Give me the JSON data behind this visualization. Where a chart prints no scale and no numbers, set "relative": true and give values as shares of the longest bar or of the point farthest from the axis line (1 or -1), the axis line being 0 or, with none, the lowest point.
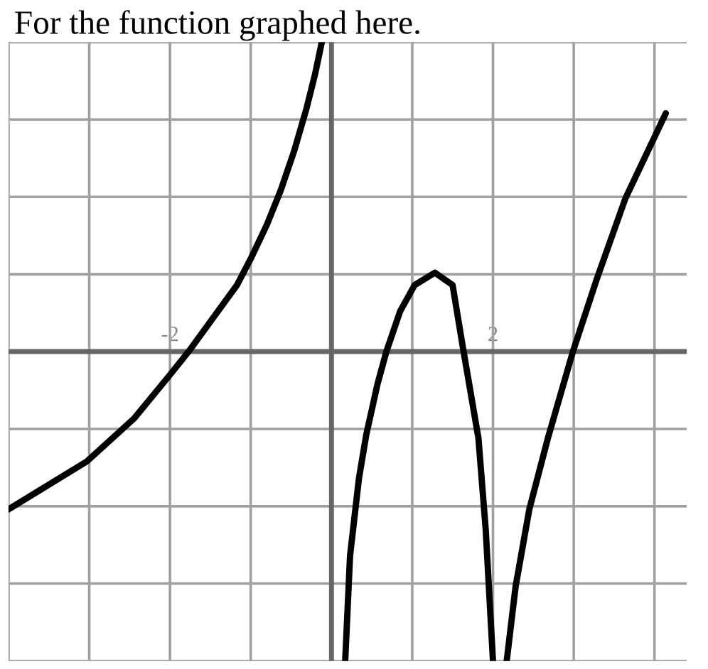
{
  "chart_data": {
    "type": "line",
    "title": "For the function graphed here.",
    "relative": true,
    "xlim": [
      -4,
      4.4
    ],
    "xticks": [
      {
        "value": -4,
        "label": null
      },
      {
        "value": -3,
        "label": null
      },
      {
        "value": -2,
        "label": "-2"
      },
      {
        "value": -1,
        "label": null
      },
      {
        "value": 0,
        "label": null
      },
      {
        "value": 1,
        "label": null
      },
      {
        "value": 2,
        "label": "2"
      },
      {
        "value": 3,
        "label": null
      },
      {
        "value": 4,
        "label": null
      }
    ],
    "tick_labels": "x",
    "grid": true,
    "marker": "none",
    "line_style": "solid",
    "series": [
      {
        "color": "#000000",
        "x": [
          -4.0,
          -3.03,
          -2.44,
          -2.0,
          -1.77,
          -1.49,
          -1.17,
          -1.0,
          -0.8,
          -0.63,
          -0.46,
          -0.31,
          -0.2,
          -0.12
        ],
        "values": [
          -0.51,
          -0.355,
          -0.215,
          -0.075,
          0,
          0.1,
          0.215,
          0.3,
          0.41,
          0.52,
          0.65,
          0.785,
          0.9,
          1
        ]
      },
      {
        "color": "#000000",
        "x": [
          0.17,
          0.23,
          0.34,
          0.43,
          0.57,
          0.68,
          0.85,
          1.03,
          1.28,
          1.5,
          1.62,
          1.82,
          1.91,
          2.0
        ],
        "values": [
          -1,
          -0.66,
          -0.41,
          -0.27,
          -0.105,
          0,
          0.13,
          0.215,
          0.255,
          0.215,
          0.025,
          -0.28,
          -0.575,
          -1
        ]
      },
      {
        "color": "#000000",
        "x": [
          2.17,
          2.28,
          2.45,
          2.68,
          2.99,
          3.28,
          3.64,
          4.14
        ],
        "values": [
          -1,
          -0.76,
          -0.51,
          -0.28,
          0,
          0.23,
          0.495,
          0.77
        ]
      }
    ]
  }
}
